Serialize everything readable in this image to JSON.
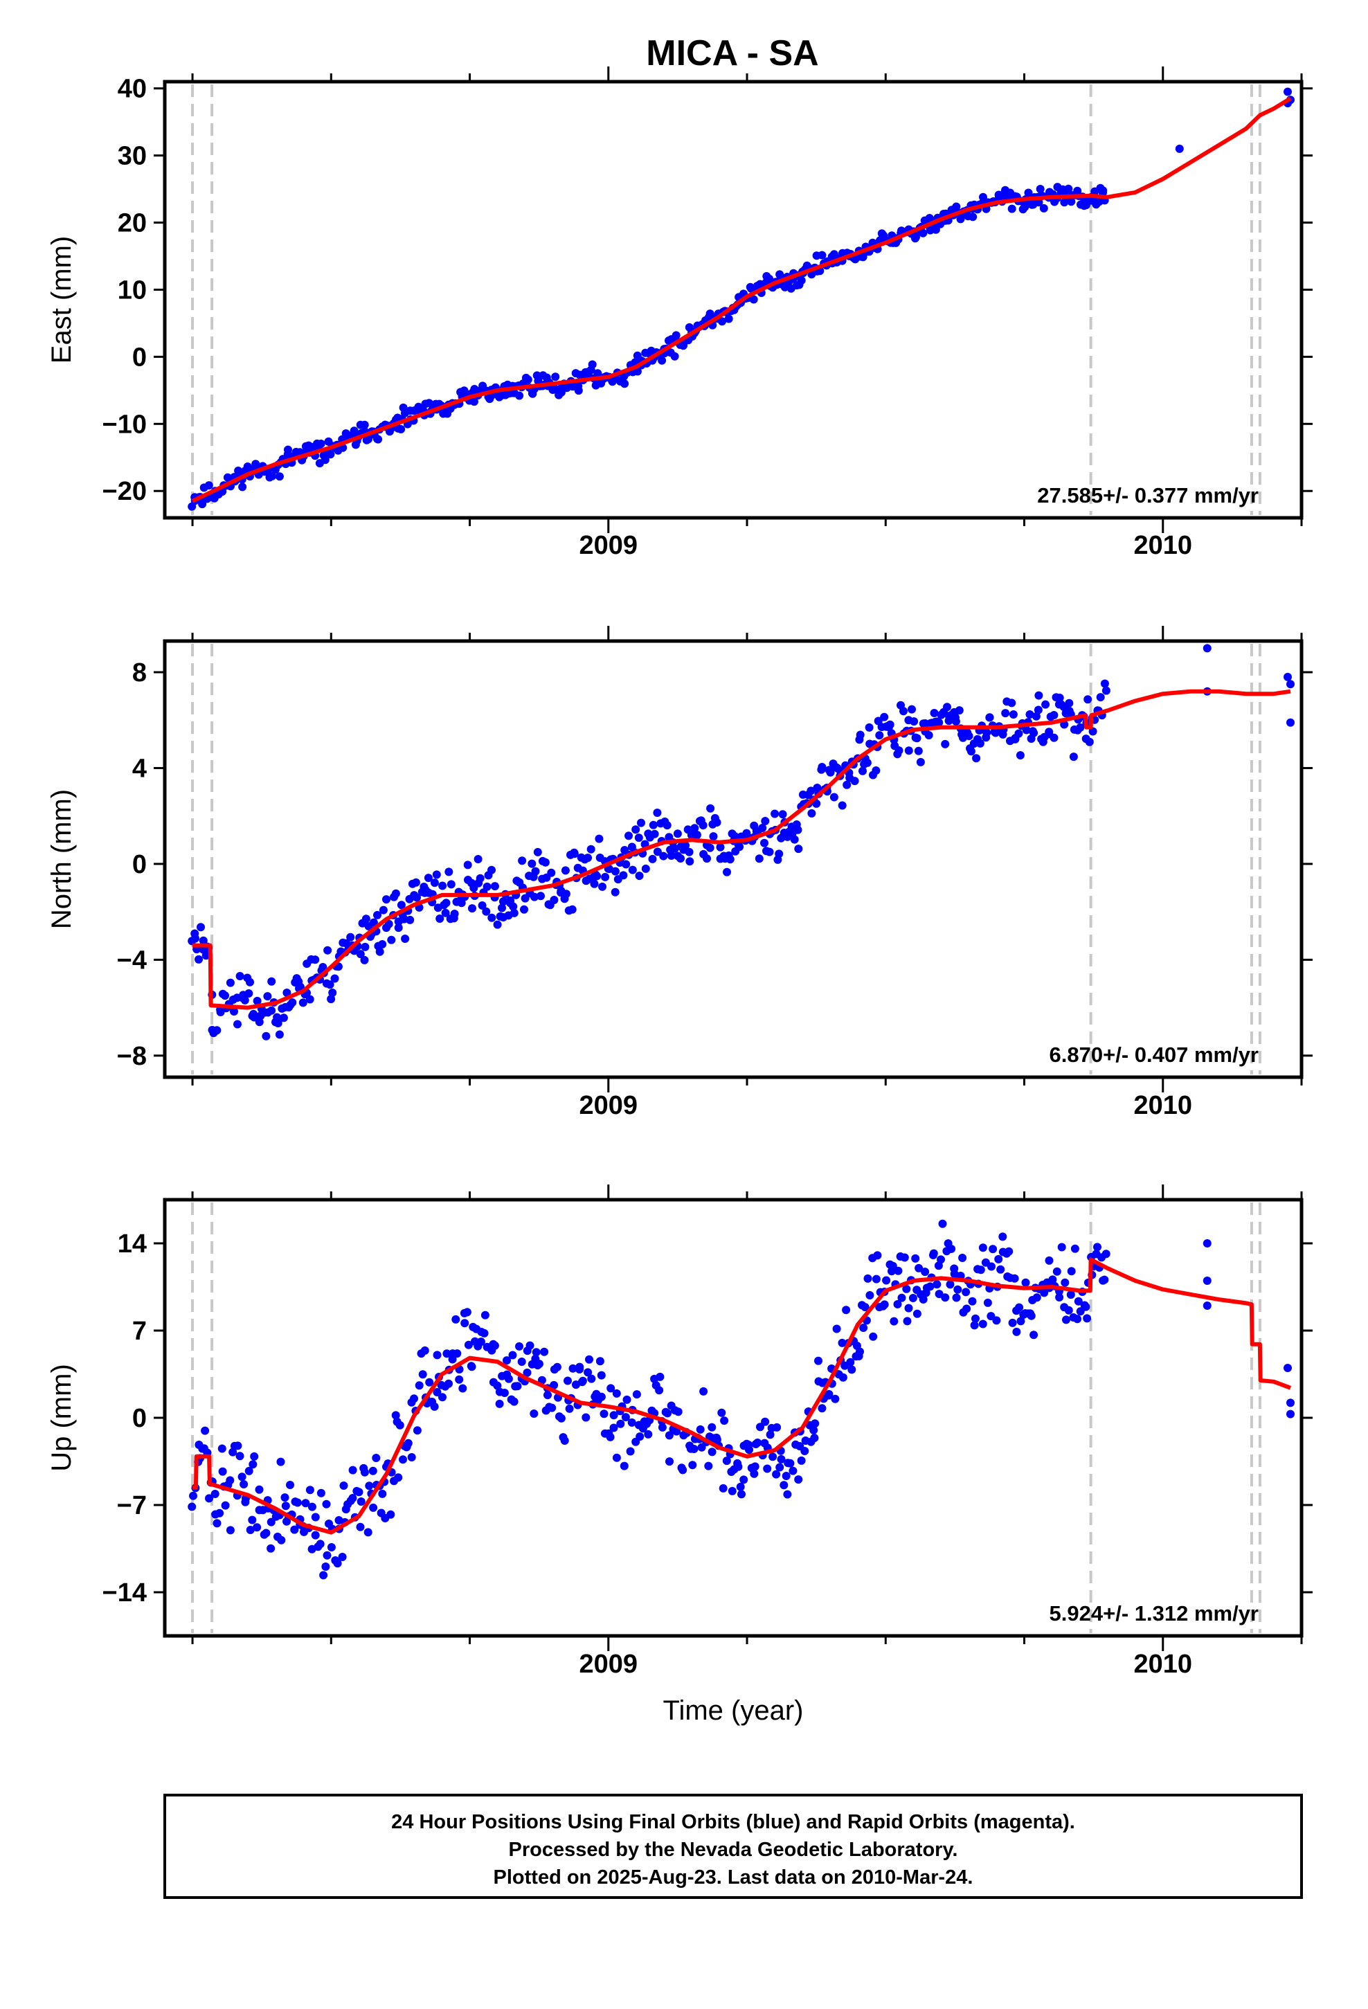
{
  "title": "MICA - SA",
  "caption": {
    "line1": "24 Hour Positions Using Final Orbits (blue) and Rapid Orbits (magenta).",
    "line2": "Processed by the Nevada Geodetic Laboratory.",
    "line3": "Plotted on 2025-Aug-23. Last data on 2010-Mar-24."
  },
  "colors": {
    "final_orbits": "#0000ff",
    "model_fit": "#ff0000",
    "event_lines": "#c8c8c8",
    "frame": "#000000"
  },
  "chart_data": [
    {
      "type": "scatter",
      "name": "east",
      "ylabel": "East (mm)",
      "xlabel": "",
      "xlim": [
        2008.2,
        2010.25
      ],
      "ylim": [
        -24,
        41
      ],
      "yticks": [
        -20,
        -10,
        0,
        10,
        20,
        30,
        40
      ],
      "xticks": [
        2009,
        2010
      ],
      "rate": "27.585+/- 0.377 mm/yr",
      "event_lines": [
        2008.25,
        2008.285,
        2009.87,
        2010.16,
        2010.175
      ],
      "fit_curve": {
        "x": [
          2008.25,
          2008.3,
          2008.35,
          2008.4,
          2008.5,
          2008.6,
          2008.7,
          2008.75,
          2008.8,
          2008.9,
          2008.95,
          2009.0,
          2009.05,
          2009.1,
          2009.15,
          2009.2,
          2009.25,
          2009.3,
          2009.4,
          2009.5,
          2009.6,
          2009.65,
          2009.7,
          2009.75,
          2009.8,
          2009.87,
          2009.9,
          2009.95,
          2010.0,
          2010.05,
          2010.1,
          2010.15,
          2010.175,
          2010.2,
          2010.23
        ],
        "y": [
          -21.5,
          -19.5,
          -17.5,
          -16.0,
          -13.5,
          -10.5,
          -7.5,
          -6.0,
          -5.0,
          -4.0,
          -3.5,
          -3.0,
          -1.5,
          1.0,
          3.5,
          6.0,
          9.0,
          11.0,
          14.0,
          17.0,
          20.5,
          22.0,
          23.0,
          23.5,
          23.8,
          24.0,
          23.8,
          24.5,
          26.5,
          29.0,
          31.5,
          34.0,
          36.0,
          37.0,
          38.5
        ]
      },
      "points": {
        "seed": 11,
        "x_start": 2008.25,
        "x_end": 2009.9,
        "count": 540,
        "noise": 1.1,
        "extra": [
          [
            2010.03,
            31.0
          ],
          [
            2010.225,
            39.5
          ],
          [
            2010.225,
            37.8
          ],
          [
            2010.23,
            38.3
          ]
        ]
      }
    },
    {
      "type": "scatter",
      "name": "north",
      "ylabel": "North (mm)",
      "xlabel": "",
      "xlim": [
        2008.2,
        2010.25
      ],
      "ylim": [
        -8.9,
        9.3
      ],
      "yticks": [
        -8,
        -4,
        0,
        4,
        8
      ],
      "xticks": [
        2009,
        2010
      ],
      "rate": "6.870+/- 0.407 mm/yr",
      "event_lines": [
        2008.25,
        2008.285,
        2009.87,
        2010.16,
        2010.175
      ],
      "fit_curve": {
        "x": [
          2008.25,
          2008.282,
          2008.283,
          2008.35,
          2008.4,
          2008.45,
          2008.5,
          2008.55,
          2008.6,
          2008.65,
          2008.7,
          2008.8,
          2008.9,
          2008.95,
          2009.0,
          2009.05,
          2009.1,
          2009.15,
          2009.2,
          2009.25,
          2009.3,
          2009.35,
          2009.4,
          2009.45,
          2009.5,
          2009.55,
          2009.6,
          2009.65,
          2009.7,
          2009.75,
          2009.8,
          2009.86,
          2009.862,
          2009.87,
          2009.871,
          2009.9,
          2009.95,
          2010.0,
          2010.05,
          2010.1,
          2010.15,
          2010.2,
          2010.23
        ],
        "y": [
          -3.4,
          -3.4,
          -5.9,
          -6.0,
          -5.8,
          -5.3,
          -4.3,
          -3.2,
          -2.3,
          -1.7,
          -1.3,
          -1.3,
          -0.9,
          -0.5,
          0.0,
          0.5,
          0.9,
          1.0,
          0.9,
          1.0,
          1.4,
          2.3,
          3.3,
          4.4,
          5.2,
          5.6,
          5.7,
          5.7,
          5.7,
          5.8,
          5.9,
          6.2,
          5.7,
          5.7,
          6.2,
          6.4,
          6.8,
          7.1,
          7.2,
          7.2,
          7.1,
          7.1,
          7.2
        ]
      },
      "points": {
        "seed": 23,
        "x_start": 2008.25,
        "x_end": 2009.9,
        "count": 540,
        "noise": 0.9,
        "extra": [
          [
            2010.08,
            9.0
          ],
          [
            2010.08,
            7.2
          ],
          [
            2010.225,
            7.8
          ],
          [
            2010.23,
            5.9
          ],
          [
            2010.23,
            7.5
          ]
        ]
      }
    },
    {
      "type": "scatter",
      "name": "up",
      "ylabel": "Up (mm)",
      "xlabel": "Time (year)",
      "xlim": [
        2008.2,
        2010.25
      ],
      "ylim": [
        -17.5,
        17.5
      ],
      "yticks": [
        -14,
        -7,
        0,
        7,
        14
      ],
      "xticks": [
        2009,
        2010
      ],
      "rate": "5.924+/- 1.312 mm/yr",
      "event_lines": [
        2008.25,
        2008.285,
        2009.87,
        2010.16,
        2010.175
      ],
      "fit_curve": {
        "x": [
          2008.25,
          2008.256,
          2008.257,
          2008.28,
          2008.281,
          2008.35,
          2008.4,
          2008.45,
          2008.5,
          2008.55,
          2008.6,
          2008.65,
          2008.7,
          2008.75,
          2008.8,
          2008.85,
          2008.9,
          2008.95,
          2009.0,
          2009.05,
          2009.1,
          2009.15,
          2009.2,
          2009.25,
          2009.3,
          2009.35,
          2009.4,
          2009.45,
          2009.5,
          2009.55,
          2009.6,
          2009.65,
          2009.7,
          2009.75,
          2009.8,
          2009.85,
          2009.869,
          2009.87,
          2009.9,
          2009.95,
          2010.0,
          2010.05,
          2010.1,
          2010.15,
          2010.16,
          2010.161,
          2010.175,
          2010.176,
          2010.2,
          2010.23
        ],
        "y": [
          -5.6,
          -5.6,
          -3.1,
          -3.1,
          -5.3,
          -6.2,
          -7.3,
          -8.6,
          -9.2,
          -7.9,
          -4.5,
          0.2,
          3.5,
          4.8,
          4.5,
          3.2,
          2.2,
          1.2,
          0.9,
          0.5,
          -0.2,
          -1.2,
          -2.4,
          -3.1,
          -2.6,
          -0.8,
          3.0,
          7.5,
          10.2,
          11.0,
          11.2,
          11.0,
          10.6,
          10.4,
          10.5,
          10.2,
          10.2,
          12.7,
          12.0,
          11.0,
          10.3,
          9.9,
          9.5,
          9.2,
          9.1,
          5.9,
          5.9,
          3.0,
          2.9,
          2.4
        ]
      },
      "points": {
        "seed": 37,
        "x_start": 2008.25,
        "x_end": 2009.9,
        "count": 540,
        "noise": 2.6,
        "extra": [
          [
            2010.08,
            14.0
          ],
          [
            2010.08,
            11.0
          ],
          [
            2010.08,
            9.0
          ],
          [
            2010.225,
            4.0
          ],
          [
            2010.23,
            0.3
          ],
          [
            2010.23,
            1.2
          ]
        ]
      }
    }
  ]
}
